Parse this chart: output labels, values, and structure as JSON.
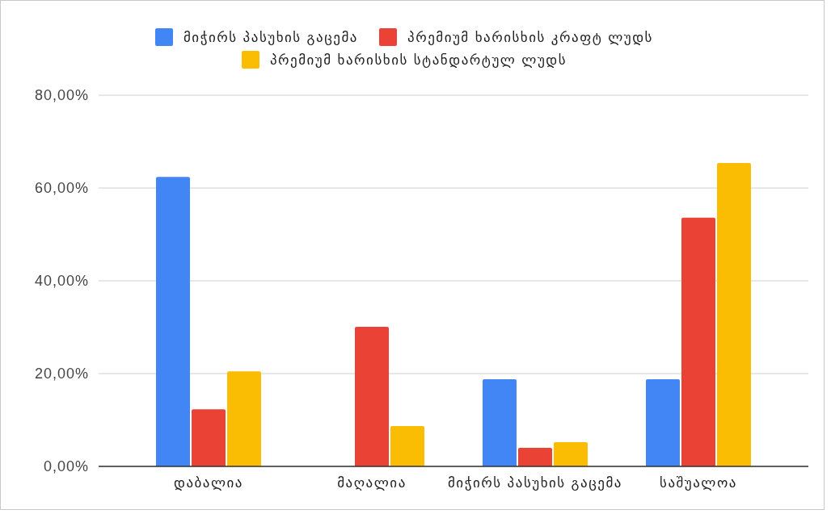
{
  "chart_data": {
    "type": "bar",
    "categories": [
      "დაბალია",
      "მაღალია",
      "მიჭირს პასუხის გაცემა",
      "საშუალოა"
    ],
    "series": [
      {
        "name": "მიჭირს პასუხის გაცემა",
        "color": "#4285f4",
        "values": [
          62.4,
          0,
          18.8,
          18.8
        ]
      },
      {
        "name": "პრემიუმ ხარისხის კრაფტ ლუდს",
        "color": "#ea4335",
        "values": [
          12.3,
          30.1,
          4.0,
          53.6
        ]
      },
      {
        "name": "პრემიუმ ხარისხის სტანდარტულ ლუდს",
        "color": "#fbbc04",
        "values": [
          20.5,
          8.7,
          5.2,
          65.4
        ]
      }
    ],
    "ylim": [
      0,
      80
    ],
    "yticks": [
      {
        "value": 0,
        "label": "0,00%"
      },
      {
        "value": 20,
        "label": "20,00%"
      },
      {
        "value": 40,
        "label": "40,00%"
      },
      {
        "value": 60,
        "label": "60,00%"
      },
      {
        "value": 80,
        "label": "80,00%"
      }
    ],
    "grid": "y",
    "legend": "top"
  }
}
